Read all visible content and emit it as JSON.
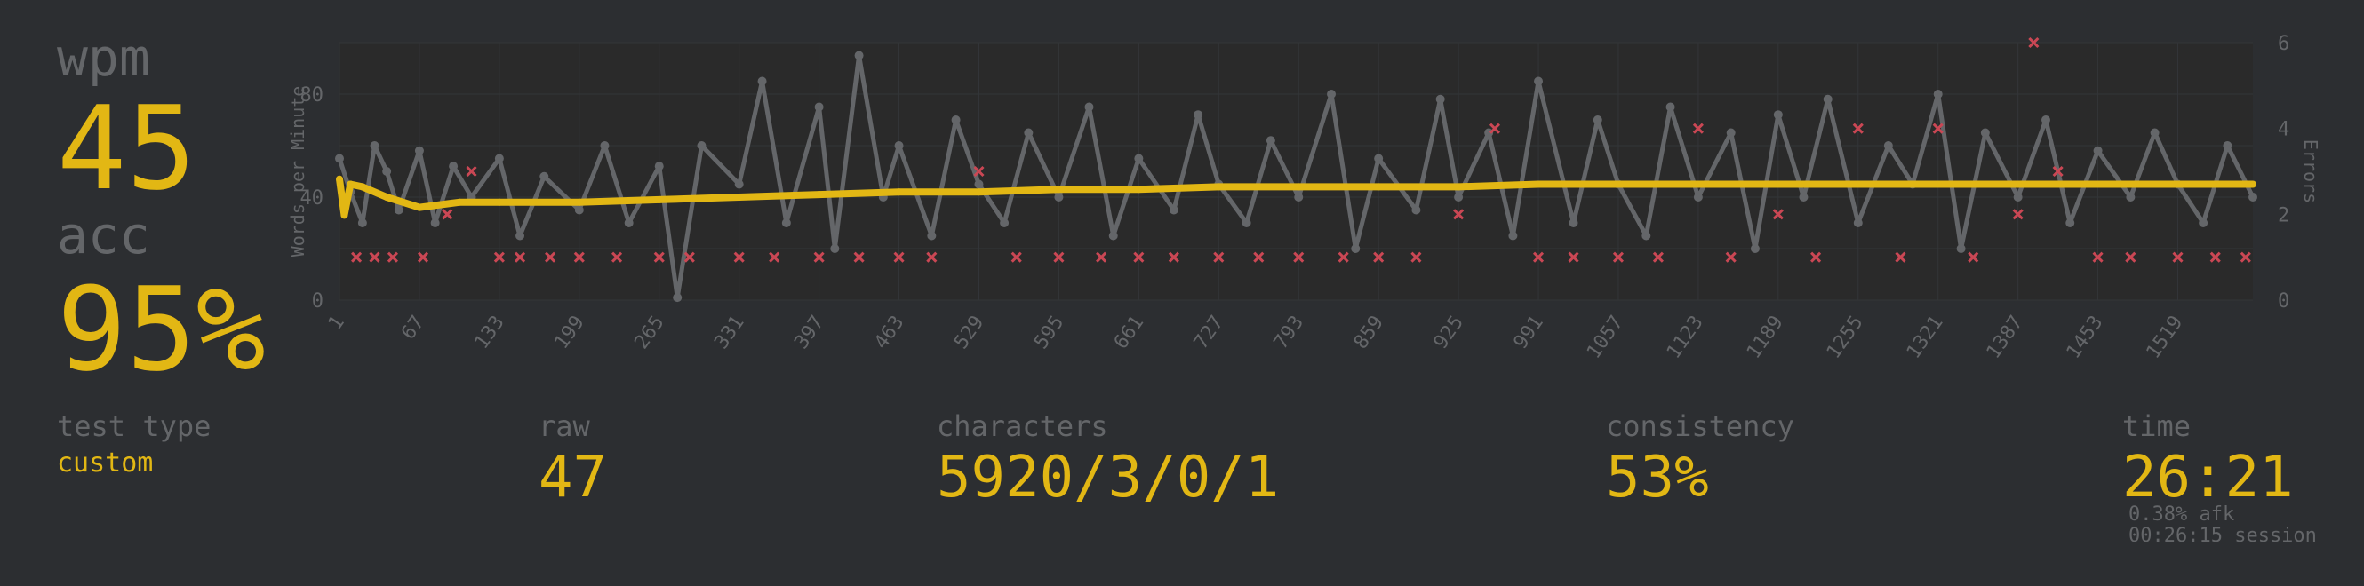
{
  "wpm": {
    "label": "wpm",
    "value": "45"
  },
  "acc": {
    "label": "acc",
    "value": "95%"
  },
  "stats": {
    "test_type": {
      "label": "test type",
      "value": "custom"
    },
    "raw": {
      "label": "raw",
      "value": "47"
    },
    "characters": {
      "label": "characters",
      "value": "5920/3/0/1"
    },
    "consistency": {
      "label": "consistency",
      "value": "53%"
    },
    "time": {
      "label": "time",
      "value": "26:21",
      "afk": "0.38% afk",
      "session": "00:26:15 session"
    }
  },
  "colors": {
    "background": "#2c2e31",
    "main": "#e2b714",
    "sub": "#646669",
    "raw_line": "#646669",
    "error": "#ca4754",
    "plot_bg": "#2a2a2a"
  },
  "chart_data": {
    "type": "line",
    "x_ticks": [
      "1",
      "67",
      "133",
      "199",
      "265",
      "331",
      "397",
      "463",
      "529",
      "595",
      "661",
      "727",
      "793",
      "859",
      "925",
      "991",
      "1057",
      "1123",
      "1189",
      "1255",
      "1321",
      "1387",
      "1453",
      "1519"
    ],
    "x_range": [
      1,
      1581
    ],
    "ylabel_left": "Words per Minute",
    "ylim_left": [
      0,
      100
    ],
    "yticks_left": [
      "0",
      "40",
      "80"
    ],
    "ylabel_right": "Errors",
    "ylim_right": [
      0,
      6
    ],
    "yticks_right": [
      "0",
      "2",
      "4",
      "6"
    ],
    "grid": true,
    "series": [
      {
        "name": "",
        "role": "wpm",
        "points": [
          [
            1,
            47
          ],
          [
            5,
            33
          ],
          [
            10,
            45
          ],
          [
            20,
            44
          ],
          [
            40,
            40
          ],
          [
            67,
            36
          ],
          [
            100,
            38
          ],
          [
            133,
            38
          ],
          [
            199,
            38
          ],
          [
            265,
            39
          ],
          [
            331,
            40
          ],
          [
            397,
            41
          ],
          [
            463,
            42
          ],
          [
            529,
            42
          ],
          [
            595,
            43
          ],
          [
            661,
            43
          ],
          [
            727,
            44
          ],
          [
            793,
            44
          ],
          [
            859,
            44
          ],
          [
            925,
            44
          ],
          [
            991,
            45
          ],
          [
            1057,
            45
          ],
          [
            1123,
            45
          ],
          [
            1189,
            45
          ],
          [
            1255,
            45
          ],
          [
            1321,
            45
          ],
          [
            1387,
            45
          ],
          [
            1453,
            45
          ],
          [
            1519,
            45
          ],
          [
            1581,
            45
          ]
        ]
      },
      {
        "name": "",
        "role": "raw",
        "points": [
          [
            1,
            55
          ],
          [
            10,
            42
          ],
          [
            20,
            30
          ],
          [
            30,
            60
          ],
          [
            40,
            50
          ],
          [
            50,
            35
          ],
          [
            67,
            58
          ],
          [
            80,
            30
          ],
          [
            95,
            52
          ],
          [
            110,
            40
          ],
          [
            133,
            55
          ],
          [
            150,
            25
          ],
          [
            170,
            48
          ],
          [
            199,
            35
          ],
          [
            220,
            60
          ],
          [
            240,
            30
          ],
          [
            265,
            52
          ],
          [
            280,
            1
          ],
          [
            300,
            60
          ],
          [
            331,
            45
          ],
          [
            350,
            85
          ],
          [
            370,
            30
          ],
          [
            397,
            75
          ],
          [
            410,
            20
          ],
          [
            430,
            95
          ],
          [
            450,
            40
          ],
          [
            463,
            60
          ],
          [
            490,
            25
          ],
          [
            510,
            70
          ],
          [
            529,
            45
          ],
          [
            550,
            30
          ],
          [
            570,
            65
          ],
          [
            595,
            40
          ],
          [
            620,
            75
          ],
          [
            640,
            25
          ],
          [
            661,
            55
          ],
          [
            690,
            35
          ],
          [
            710,
            72
          ],
          [
            727,
            45
          ],
          [
            750,
            30
          ],
          [
            770,
            62
          ],
          [
            793,
            40
          ],
          [
            820,
            80
          ],
          [
            840,
            20
          ],
          [
            859,
            55
          ],
          [
            890,
            35
          ],
          [
            910,
            78
          ],
          [
            925,
            40
          ],
          [
            950,
            65
          ],
          [
            970,
            25
          ],
          [
            991,
            85
          ],
          [
            1020,
            30
          ],
          [
            1040,
            70
          ],
          [
            1057,
            45
          ],
          [
            1080,
            25
          ],
          [
            1100,
            75
          ],
          [
            1123,
            40
          ],
          [
            1150,
            65
          ],
          [
            1170,
            20
          ],
          [
            1189,
            72
          ],
          [
            1210,
            40
          ],
          [
            1230,
            78
          ],
          [
            1255,
            30
          ],
          [
            1280,
            60
          ],
          [
            1300,
            45
          ],
          [
            1321,
            80
          ],
          [
            1340,
            20
          ],
          [
            1360,
            65
          ],
          [
            1387,
            40
          ],
          [
            1410,
            70
          ],
          [
            1430,
            30
          ],
          [
            1453,
            58
          ],
          [
            1480,
            40
          ],
          [
            1500,
            65
          ],
          [
            1519,
            45
          ],
          [
            1540,
            30
          ],
          [
            1560,
            60
          ],
          [
            1581,
            40
          ]
        ]
      }
    ],
    "errors": [
      [
        15,
        1
      ],
      [
        30,
        1
      ],
      [
        45,
        1
      ],
      [
        70,
        1
      ],
      [
        90,
        2
      ],
      [
        110,
        3
      ],
      [
        133,
        1
      ],
      [
        150,
        1
      ],
      [
        175,
        1
      ],
      [
        199,
        1
      ],
      [
        230,
        1
      ],
      [
        265,
        1
      ],
      [
        290,
        1
      ],
      [
        331,
        1
      ],
      [
        360,
        1
      ],
      [
        397,
        1
      ],
      [
        430,
        1
      ],
      [
        463,
        1
      ],
      [
        490,
        1
      ],
      [
        529,
        3
      ],
      [
        560,
        1
      ],
      [
        595,
        1
      ],
      [
        630,
        1
      ],
      [
        661,
        1
      ],
      [
        690,
        1
      ],
      [
        727,
        1
      ],
      [
        760,
        1
      ],
      [
        793,
        1
      ],
      [
        830,
        1
      ],
      [
        859,
        1
      ],
      [
        890,
        1
      ],
      [
        925,
        2
      ],
      [
        955,
        4
      ],
      [
        991,
        1
      ],
      [
        1020,
        1
      ],
      [
        1057,
        1
      ],
      [
        1090,
        1
      ],
      [
        1123,
        4
      ],
      [
        1150,
        1
      ],
      [
        1189,
        2
      ],
      [
        1220,
        1
      ],
      [
        1255,
        4
      ],
      [
        1290,
        1
      ],
      [
        1321,
        4
      ],
      [
        1350,
        1
      ],
      [
        1387,
        2
      ],
      [
        1400,
        6
      ],
      [
        1420,
        3
      ],
      [
        1453,
        1
      ],
      [
        1480,
        1
      ],
      [
        1519,
        1
      ],
      [
        1550,
        1
      ],
      [
        1575,
        1
      ]
    ]
  }
}
